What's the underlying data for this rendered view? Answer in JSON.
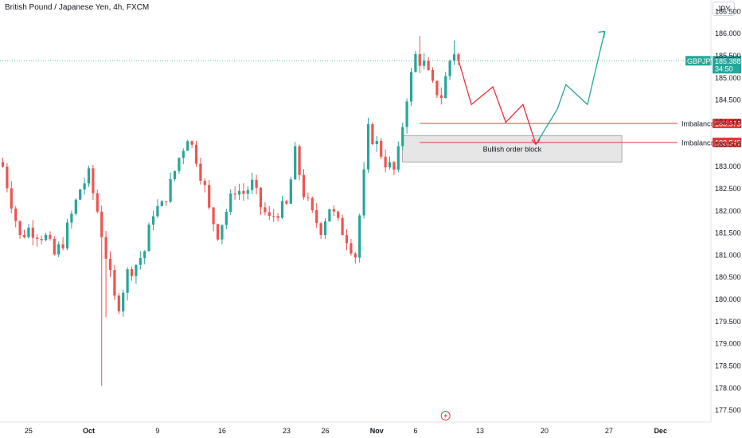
{
  "header": {
    "title": "British Pound / Japanese Yen, 4h, FXCM",
    "currency": "JPY"
  },
  "colors": {
    "up": "#26a69a",
    "down": "#ef5350",
    "projection_down": "#ef2f3d",
    "projection_up": "#26a69a",
    "imbalance_line": "#e53935",
    "price_line": "#26a69a",
    "order_block_fill": "#e6e6e6"
  },
  "icons": {
    "flash": "flash-icon"
  },
  "chart_data": {
    "type": "candlestick",
    "symbol": "GBPJPY",
    "timeframe": "4h",
    "ylim": [
      177.35,
      186.75
    ],
    "yticks": [
      "177.500",
      "178.000",
      "178.500",
      "179.000",
      "179.500",
      "180.000",
      "180.500",
      "181.000",
      "181.500",
      "182.000",
      "182.500",
      "183.000",
      "183.500",
      "184.000",
      "184.500",
      "185.000",
      "185.500",
      "186.000",
      "186.500"
    ],
    "x_labels": [
      {
        "label": "25",
        "bold": false,
        "bar": 6
      },
      {
        "label": "Oct",
        "bold": true,
        "bar": 20
      },
      {
        "label": "9",
        "bold": false,
        "bar": 36
      },
      {
        "label": "16",
        "bold": false,
        "bar": 51
      },
      {
        "label": "23",
        "bold": false,
        "bar": 66
      },
      {
        "label": "26",
        "bold": false,
        "bar": 75
      },
      {
        "label": "Nov",
        "bold": true,
        "bar": 87
      },
      {
        "label": "6",
        "bold": false,
        "bar": 96
      },
      {
        "label": "13",
        "bold": false,
        "bar": 111
      },
      {
        "label": "20",
        "bold": false,
        "bar": 126
      },
      {
        "label": "27",
        "bold": false,
        "bar": 141
      },
      {
        "label": "Dec",
        "bold": true,
        "bar": 153
      }
    ],
    "close_path": [
      [
        0,
        183.0
      ],
      [
        2,
        182.2
      ],
      [
        4,
        181.4
      ],
      [
        6,
        181.6
      ],
      [
        8,
        181.5
      ],
      [
        10,
        181.4
      ],
      [
        12,
        181.0
      ],
      [
        14,
        181.3
      ],
      [
        16,
        181.9
      ],
      [
        18,
        182.5
      ],
      [
        20,
        182.8
      ],
      [
        22,
        182.0
      ],
      [
        24,
        181.0
      ],
      [
        26,
        180.0
      ],
      [
        27,
        179.9
      ],
      [
        29,
        180.6
      ],
      [
        31,
        180.8
      ],
      [
        33,
        181.1
      ],
      [
        35,
        182.0
      ],
      [
        37,
        182.1
      ],
      [
        39,
        182.6
      ],
      [
        41,
        183.2
      ],
      [
        43,
        183.7
      ],
      [
        45,
        183.2
      ],
      [
        47,
        182.5
      ],
      [
        48,
        182.0
      ],
      [
        50,
        181.5
      ],
      [
        52,
        182.0
      ],
      [
        54,
        182.5
      ],
      [
        56,
        182.4
      ],
      [
        58,
        182.6
      ],
      [
        60,
        182.1
      ],
      [
        62,
        181.8
      ],
      [
        64,
        182.0
      ],
      [
        66,
        182.1
      ],
      [
        68,
        183.3
      ],
      [
        70,
        182.4
      ],
      [
        72,
        181.9
      ],
      [
        74,
        181.6
      ],
      [
        76,
        182.1
      ],
      [
        78,
        181.7
      ],
      [
        80,
        181.4
      ],
      [
        82,
        181.0
      ],
      [
        84,
        182.8
      ],
      [
        85,
        183.8
      ],
      [
        87,
        183.5
      ],
      [
        89,
        183.1
      ],
      [
        91,
        182.9
      ],
      [
        92,
        183.3
      ],
      [
        94,
        184.6
      ],
      [
        96,
        185.5
      ],
      [
        98,
        185.3
      ],
      [
        100,
        184.8
      ],
      [
        102,
        184.6
      ],
      [
        104,
        185.4
      ],
      [
        105,
        185.6
      ],
      [
        106,
        185.3
      ]
    ],
    "last_price": "185.388",
    "price_label": "GBPJPY",
    "countdown": "34:50",
    "imbalances": [
      {
        "label": "Imbalance",
        "price": "183.973",
        "value": 183.973
      },
      {
        "label": "Imbalance",
        "price": "183.545",
        "value": 183.545
      }
    ],
    "order_block": {
      "label": "Bullish order block",
      "top": 183.7,
      "bottom": 183.1,
      "from_bar": 93,
      "to_bar": 144
    },
    "projection_down": [
      [
        106,
        185.4
      ],
      [
        109,
        184.4
      ],
      [
        114,
        184.8
      ],
      [
        117,
        184.0
      ],
      [
        121,
        184.4
      ],
      [
        124,
        183.5
      ]
    ],
    "projection_up": [
      [
        124,
        183.5
      ],
      [
        129,
        184.3
      ],
      [
        131,
        184.85
      ],
      [
        136,
        184.4
      ],
      [
        140,
        186.05
      ]
    ]
  }
}
